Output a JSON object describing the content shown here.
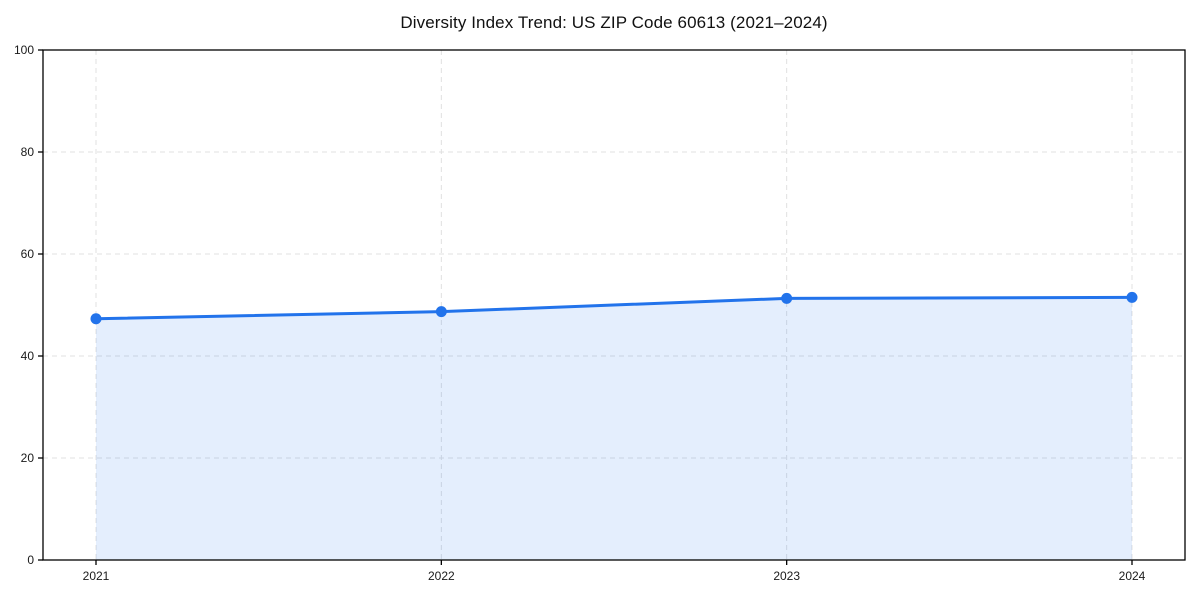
{
  "chart_data": {
    "type": "area",
    "title": "Diversity Index Trend: US ZIP Code 60613 (2021–2024)",
    "categories": [
      "2021",
      "2022",
      "2023",
      "2024"
    ],
    "series": [
      {
        "name": "Diversity Index",
        "values": [
          47.3,
          48.7,
          51.3,
          51.5
        ]
      }
    ],
    "xlabel": "",
    "ylabel": "",
    "ylim": [
      0,
      100
    ],
    "yticks": [
      0,
      20,
      40,
      60,
      80,
      100
    ],
    "grid": true,
    "grid_style": "dashed",
    "legend": false,
    "marker": "circle",
    "colors": {
      "line": "#2273eb",
      "marker": "#2273eb",
      "fill": "#2273eb",
      "fill_opacity": 0.12,
      "grid": "#e0e0e0",
      "axis": "#000000",
      "tick_text": "#1a1a1a",
      "background": "#ffffff"
    }
  }
}
